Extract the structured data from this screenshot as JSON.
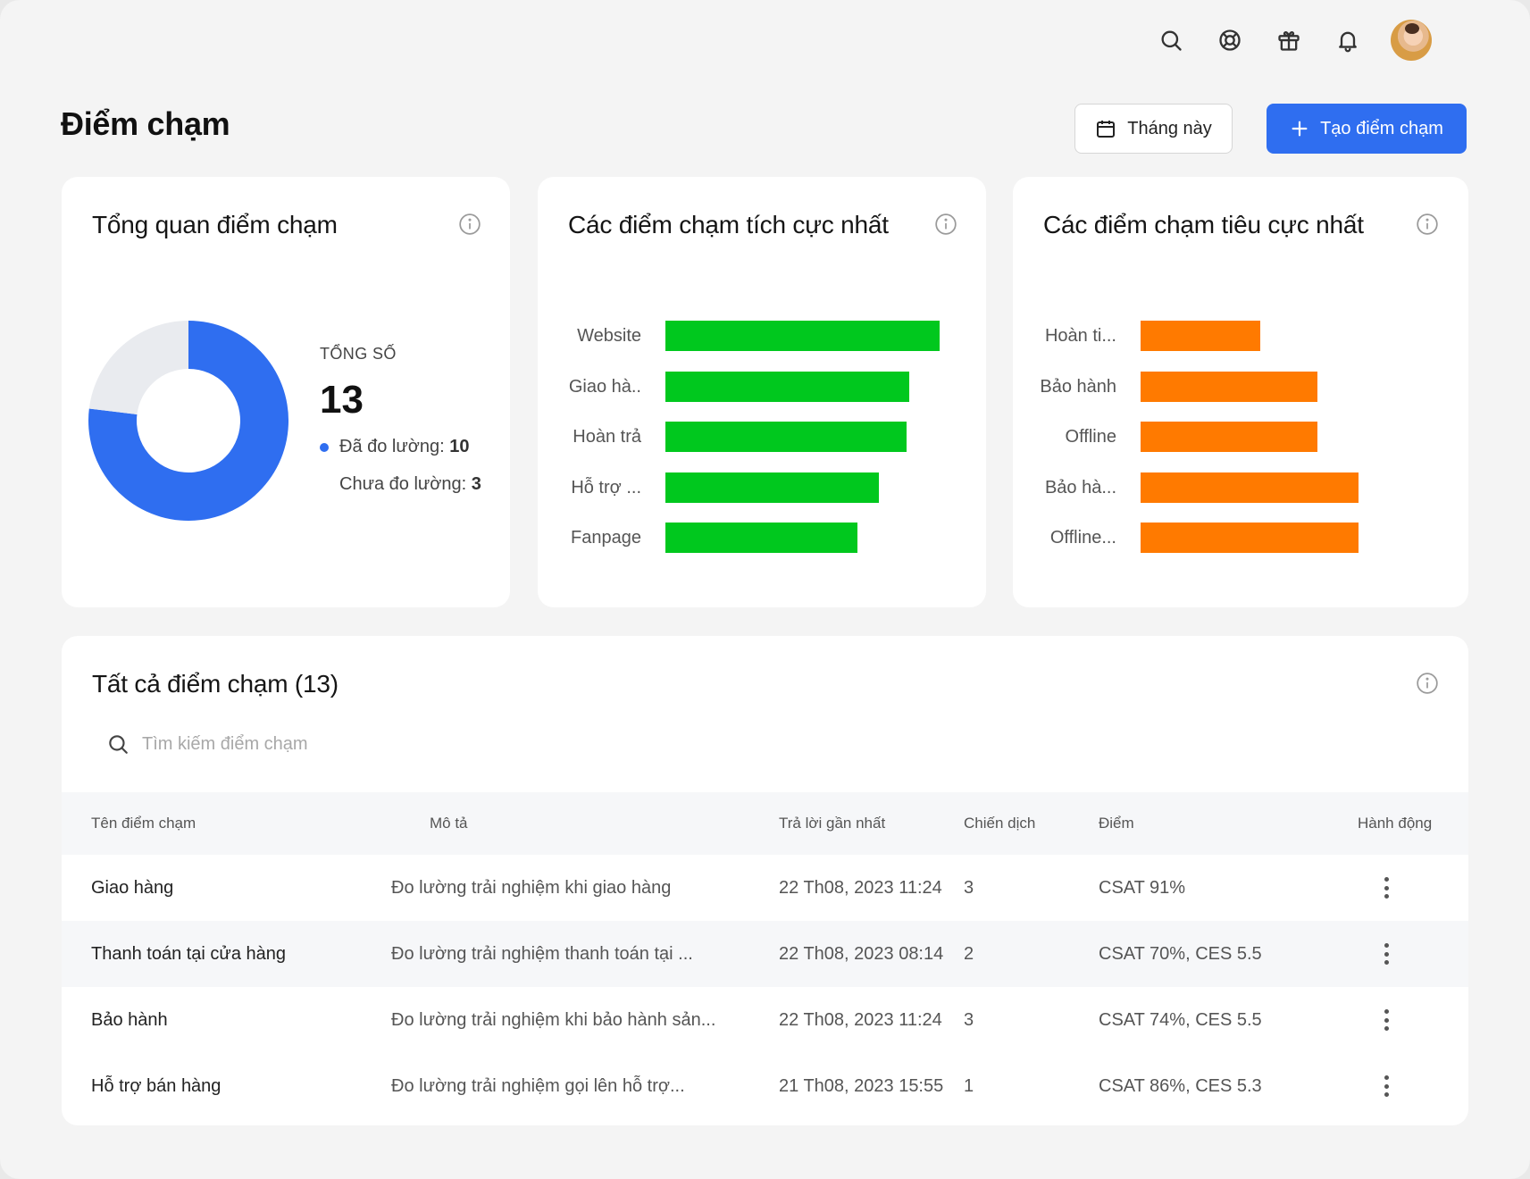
{
  "header": {
    "page_title": "Điểm chạm",
    "icons": [
      "search-icon",
      "help-lifebuoy-icon",
      "gift-icon",
      "bell-icon"
    ],
    "month_button": "Tháng này",
    "create_button": "Tạo điểm chạm"
  },
  "overview": {
    "title": "Tổng quan điểm chạm",
    "total_label": "TỔNG SỐ",
    "total_value": "13",
    "measured_label": "Đã đo lường: ",
    "measured_value": "10",
    "unmeasured_label": "Chưa đo lường: ",
    "unmeasured_value": "3",
    "colors": {
      "measured": "#2f6ef0",
      "unmeasured": "#e9ebef"
    }
  },
  "positive": {
    "title": "Các điểm chạm tích cực nhất",
    "color": "#00c81e"
  },
  "negative": {
    "title": "Các điểm chạm tiêu cực nhất",
    "color": "#ff7a00"
  },
  "chart_data": [
    {
      "type": "pie",
      "categories": [
        "Đã đo lường",
        "Chưa đo lường"
      ],
      "values": [
        10,
        3
      ]
    },
    {
      "type": "bar",
      "title": "Các điểm chạm tích cực nhất",
      "categories": [
        "Website",
        "Giao hà..",
        "Hoàn trả",
        "Hỗ trợ ...",
        "Fanpage"
      ],
      "values": [
        100,
        89,
        88,
        78,
        70
      ]
    },
    {
      "type": "bar",
      "title": "Các điểm chạm tiêu cực nhất",
      "categories": [
        "Hoàn ti...",
        "Bảo hành",
        "Offline",
        "Bảo hà...",
        "Offline..."
      ],
      "values": [
        55,
        81,
        81,
        100,
        100
      ]
    }
  ],
  "table": {
    "title": "Tất cả điểm chạm (13)",
    "search_placeholder": "Tìm kiếm điểm chạm",
    "columns": {
      "name": "Tên điểm chạm",
      "desc": "Mô tả",
      "last": "Trả lời gần nhất",
      "campaign": "Chiến dịch",
      "score": "Điểm",
      "action": "Hành động"
    },
    "rows": [
      {
        "name": "Giao hàng",
        "desc": "Đo lường trải nghiệm khi giao hàng",
        "last": "22 Th08, 2023 11:24",
        "campaign": "3",
        "score": "CSAT 91%"
      },
      {
        "name": "Thanh toán tại cửa hàng",
        "desc": "Đo lường trải nghiệm thanh toán tại ...",
        "last": "22 Th08, 2023 08:14",
        "campaign": "2",
        "score": "CSAT 70%, CES 5.5"
      },
      {
        "name": "Bảo hành",
        "desc": "Đo lường trải nghiệm khi bảo hành sản...",
        "last": "22 Th08, 2023 11:24",
        "campaign": "3",
        "score": "CSAT 74%, CES 5.5"
      },
      {
        "name": "Hỗ trợ bán hàng",
        "desc": "Đo lường trải nghiệm gọi lên hỗ trợ...",
        "last": "21 Th08, 2023 15:55",
        "campaign": "1",
        "score": "CSAT 86%, CES 5.3"
      }
    ]
  }
}
